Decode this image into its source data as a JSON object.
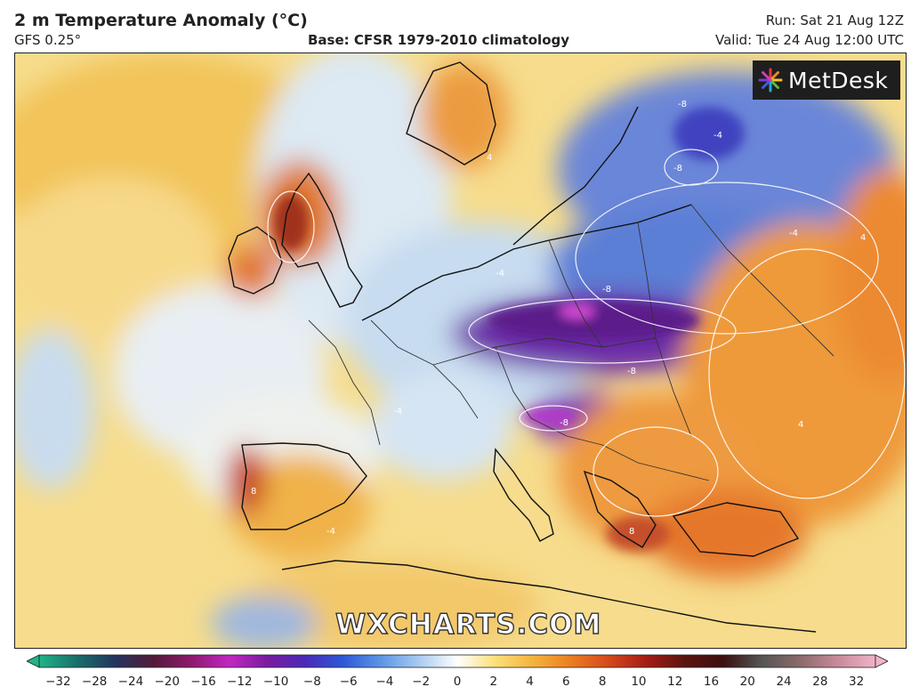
{
  "header": {
    "title": "2 m Temperature Anomaly (°C)",
    "model": "GFS 0.25°",
    "base": "Base: CFSR 1979-2010 climatology",
    "run": "Run: Sat 21 Aug 12Z",
    "valid": "Valid: Tue 24 Aug 12:00 UTC"
  },
  "logo": {
    "text": "MetDesk",
    "icon": "metdesk-star-icon"
  },
  "watermark": "WXCHARTS.COM",
  "map": {
    "region": "Europe",
    "contour_labels": [
      "-8",
      "-8",
      "-8",
      "-8",
      "-4",
      "-4",
      "-4",
      "-4",
      "4",
      "4",
      "4",
      "8",
      "8",
      "-8",
      "-4"
    ]
  },
  "colorbar": {
    "ticks": [
      "−32",
      "−28",
      "−24",
      "−20",
      "−16",
      "−12",
      "−10",
      "−8",
      "−6",
      "−4",
      "−2",
      "0",
      "2",
      "4",
      "6",
      "8",
      "10",
      "12",
      "16",
      "20",
      "24",
      "28",
      "32"
    ],
    "colors": [
      "#1fb487",
      "#1a6e6b",
      "#23345f",
      "#531a39",
      "#8d1a6c",
      "#c227c2",
      "#7a1ca0",
      "#4a2ab8",
      "#2d59d6",
      "#5d96e6",
      "#a9cbf0",
      "#ffffff",
      "#fbe07a",
      "#f4b33c",
      "#ec7d22",
      "#d4481b",
      "#a31b14",
      "#5a1410",
      "#3a1010",
      "#555555",
      "#8a6a6a",
      "#c78a9a",
      "#f1b3c8"
    ]
  }
}
